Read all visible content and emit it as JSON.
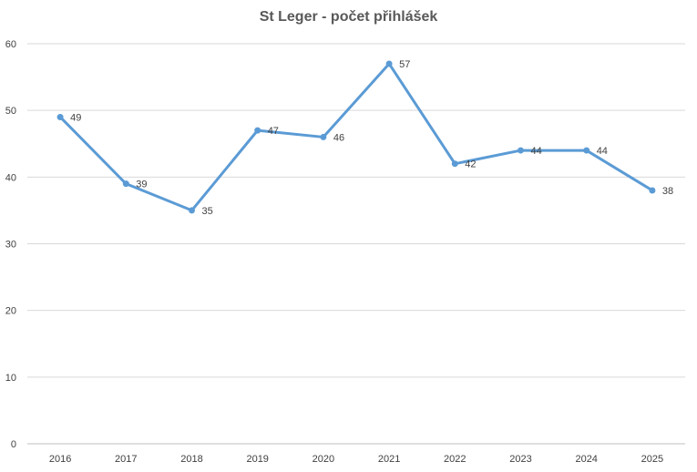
{
  "chart_data": {
    "type": "line",
    "title": "St Leger - počet přihlášek",
    "categories": [
      "2016",
      "2017",
      "2018",
      "2019",
      "2020",
      "2021",
      "2022",
      "2023",
      "2024",
      "2025"
    ],
    "series": [
      {
        "values": [
          49,
          39,
          35,
          47,
          46,
          57,
          42,
          44,
          44,
          38
        ],
        "color": "#5B9BD5"
      }
    ],
    "ylim": [
      0,
      60
    ],
    "yticks": [
      0,
      10,
      20,
      30,
      40,
      50,
      60
    ],
    "grid": true,
    "data_labels": true,
    "legend": "none"
  }
}
